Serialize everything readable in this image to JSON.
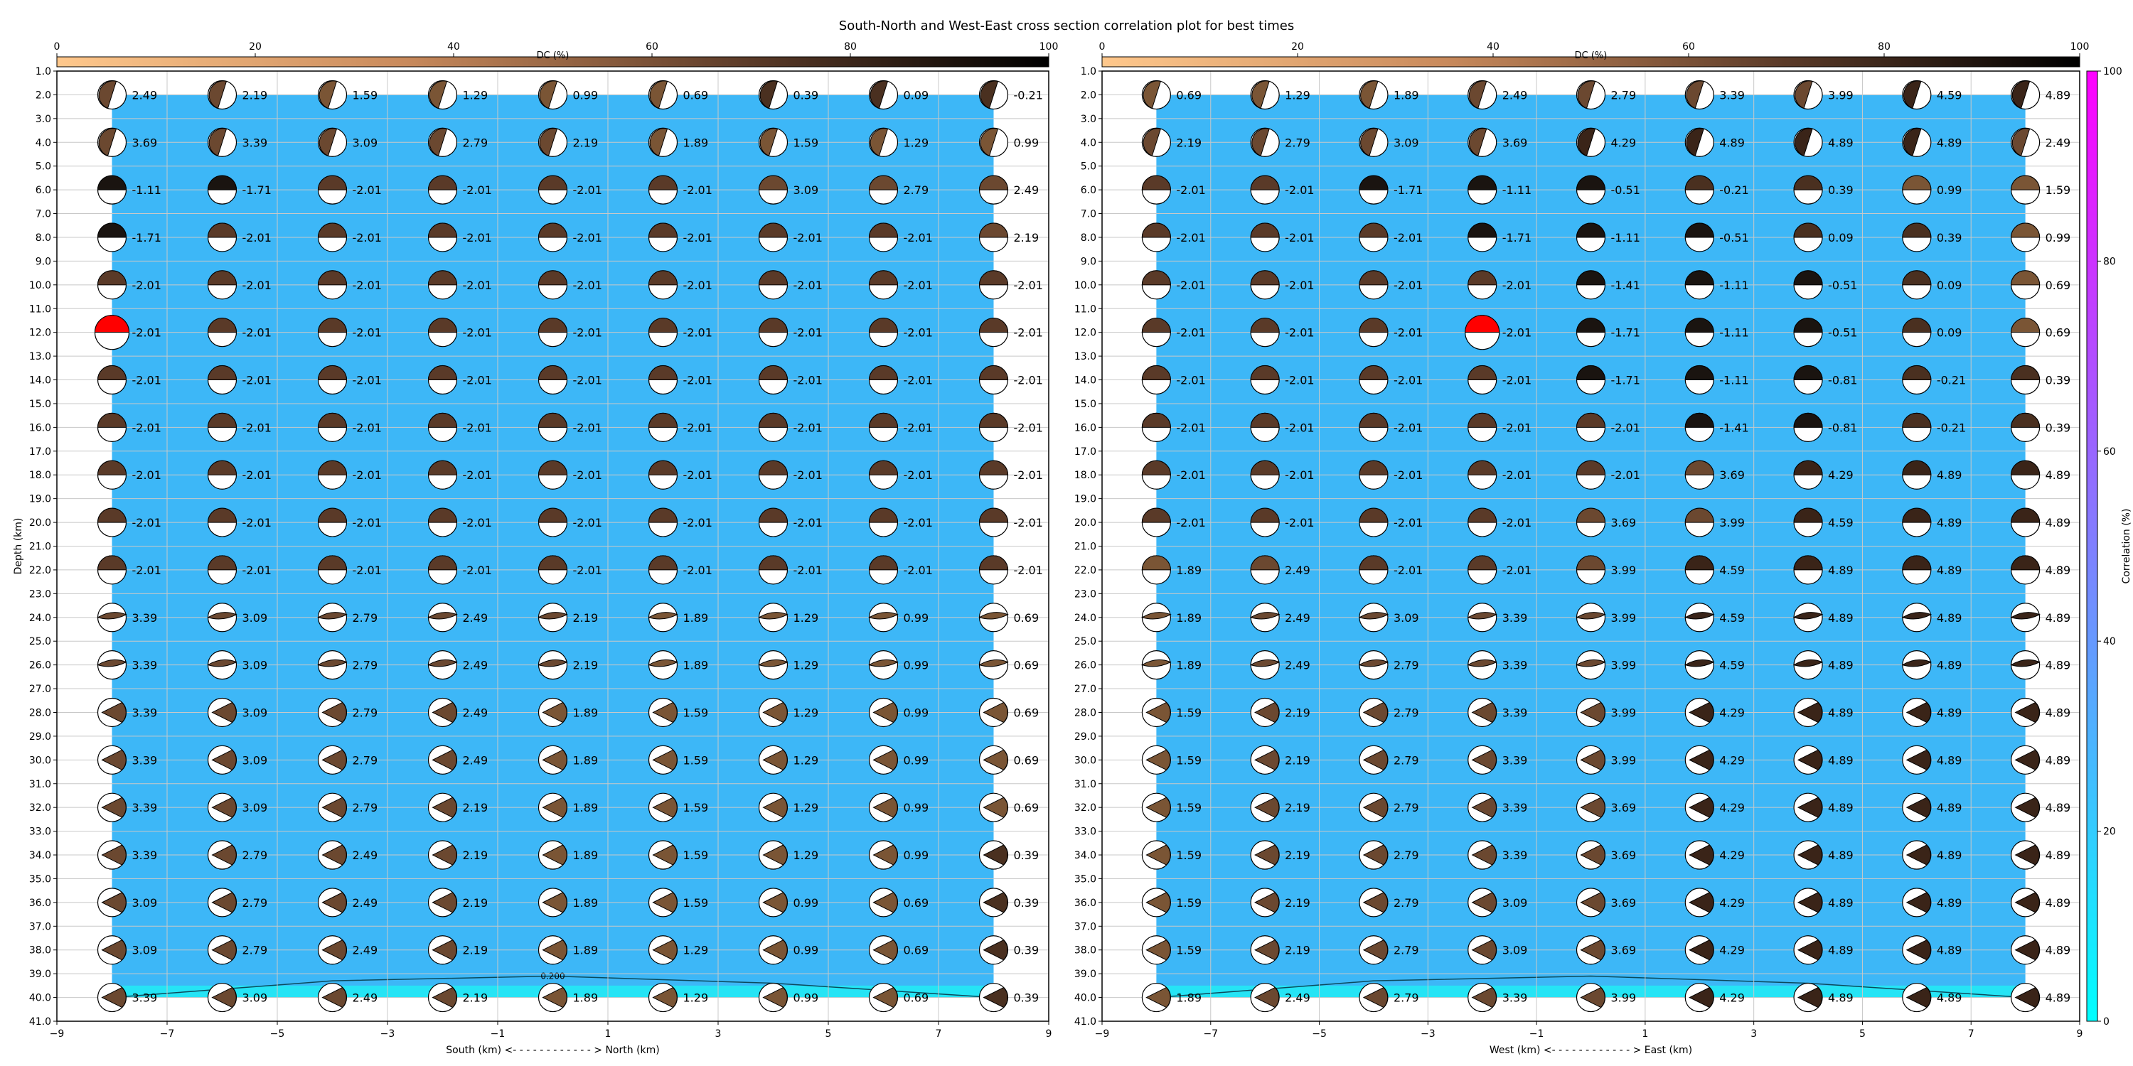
{
  "figure_title": "South-North and West-East cross section correlation plot for best times",
  "colors": {
    "background_fill": "#3db7f7",
    "contour_fill": "#25e4f5",
    "best_beach": "#ff0000"
  },
  "dc_colorbar": {
    "label": "DC (%)",
    "ticks": [
      "0",
      "20",
      "40",
      "60",
      "80",
      "100"
    ]
  },
  "corr_colorbar": {
    "label": "Correlation (%)",
    "ticks": [
      "0",
      "20",
      "40",
      "60",
      "80",
      "100"
    ]
  },
  "depth_label": "Depth (km)",
  "y_ticks": [
    "1.0",
    "2.0",
    "3.0",
    "4.0",
    "5.0",
    "6.0",
    "7.0",
    "8.0",
    "9.0",
    "10.0",
    "11.0",
    "12.0",
    "13.0",
    "14.0",
    "15.0",
    "16.0",
    "17.0",
    "18.0",
    "19.0",
    "20.0",
    "21.0",
    "22.0",
    "23.0",
    "24.0",
    "25.0",
    "26.0",
    "27.0",
    "28.0",
    "29.0",
    "30.0",
    "31.0",
    "32.0",
    "33.0",
    "34.0",
    "35.0",
    "36.0",
    "37.0",
    "38.0",
    "39.0",
    "40.0",
    "41.0"
  ],
  "chart_data": [
    {
      "type": "scatter",
      "title": "",
      "xlabel": "South (km) <- - - - - - - - - - - - > North (km)",
      "ylabel": "Depth (km)",
      "xlim": [
        -9,
        9
      ],
      "ylim": [
        41,
        1
      ],
      "x_ticks": [
        "−9",
        "−7",
        "−5",
        "−3",
        "−1",
        "1",
        "3",
        "5",
        "7",
        "9"
      ],
      "x": [
        -8,
        -6,
        -4,
        -2,
        0,
        2,
        4,
        6,
        8
      ],
      "depths": [
        2,
        4,
        6,
        8,
        10,
        12,
        14,
        16,
        18,
        20,
        22,
        24,
        26,
        28,
        30,
        32,
        34,
        36,
        38,
        40
      ],
      "best": {
        "x": -8,
        "depth": 12
      },
      "contour_label": "0.200",
      "labels": [
        [
          "2.49",
          "2.19",
          "1.59",
          "1.29",
          "0.99",
          "0.69",
          "0.39",
          "0.09",
          "-0.21"
        ],
        [
          "3.69",
          "3.39",
          "3.09",
          "2.79",
          "2.19",
          "1.89",
          "1.59",
          "1.29",
          "0.99"
        ],
        [
          "-1.11",
          "-1.71",
          "-2.01",
          "-2.01",
          "-2.01",
          "-2.01",
          "3.09",
          "2.79",
          "2.49"
        ],
        [
          "-1.71",
          "-2.01",
          "-2.01",
          "-2.01",
          "-2.01",
          "-2.01",
          "-2.01",
          "-2.01",
          "2.19"
        ],
        [
          "-2.01",
          "-2.01",
          "-2.01",
          "-2.01",
          "-2.01",
          "-2.01",
          "-2.01",
          "-2.01",
          "-2.01"
        ],
        [
          "-2.01",
          "-2.01",
          "-2.01",
          "-2.01",
          "-2.01",
          "-2.01",
          "-2.01",
          "-2.01",
          "-2.01"
        ],
        [
          "-2.01",
          "-2.01",
          "-2.01",
          "-2.01",
          "-2.01",
          "-2.01",
          "-2.01",
          "-2.01",
          "-2.01"
        ],
        [
          "-2.01",
          "-2.01",
          "-2.01",
          "-2.01",
          "-2.01",
          "-2.01",
          "-2.01",
          "-2.01",
          "-2.01"
        ],
        [
          "-2.01",
          "-2.01",
          "-2.01",
          "-2.01",
          "-2.01",
          "-2.01",
          "-2.01",
          "-2.01",
          "-2.01"
        ],
        [
          "-2.01",
          "-2.01",
          "-2.01",
          "-2.01",
          "-2.01",
          "-2.01",
          "-2.01",
          "-2.01",
          "-2.01"
        ],
        [
          "-2.01",
          "-2.01",
          "-2.01",
          "-2.01",
          "-2.01",
          "-2.01",
          "-2.01",
          "-2.01",
          "-2.01"
        ],
        [
          "3.39",
          "3.09",
          "2.79",
          "2.49",
          "2.19",
          "1.89",
          "1.29",
          "0.99",
          "0.69"
        ],
        [
          "3.39",
          "3.09",
          "2.79",
          "2.49",
          "2.19",
          "1.89",
          "1.29",
          "0.99",
          "0.69"
        ],
        [
          "3.39",
          "3.09",
          "2.79",
          "2.49",
          "1.89",
          "1.59",
          "1.29",
          "0.99",
          "0.69"
        ],
        [
          "3.39",
          "3.09",
          "2.79",
          "2.49",
          "1.89",
          "1.59",
          "1.29",
          "0.99",
          "0.69"
        ],
        [
          "3.39",
          "3.09",
          "2.79",
          "2.19",
          "1.89",
          "1.59",
          "1.29",
          "0.99",
          "0.69"
        ],
        [
          "3.39",
          "2.79",
          "2.49",
          "2.19",
          "1.89",
          "1.59",
          "1.29",
          "0.99",
          "0.39"
        ],
        [
          "3.09",
          "2.79",
          "2.49",
          "2.19",
          "1.89",
          "1.59",
          "0.99",
          "0.69",
          "0.39"
        ],
        [
          "3.09",
          "2.79",
          "2.49",
          "2.19",
          "1.89",
          "1.29",
          "0.99",
          "0.69",
          "0.39"
        ],
        [
          "3.39",
          "3.09",
          "2.49",
          "2.19",
          "1.89",
          "1.29",
          "0.99",
          "0.69",
          "0.39"
        ]
      ]
    },
    {
      "type": "scatter",
      "title": "",
      "xlabel": "West (km) <- - - - - - - - - - - - > East (km)",
      "ylabel": "",
      "xlim": [
        -9,
        9
      ],
      "ylim": [
        41,
        1
      ],
      "x_ticks": [
        "−9",
        "−7",
        "−5",
        "−3",
        "−1",
        "1",
        "3",
        "5",
        "7",
        "9"
      ],
      "x": [
        -8,
        -6,
        -4,
        -2,
        0,
        2,
        4,
        6,
        8
      ],
      "depths": [
        2,
        4,
        6,
        8,
        10,
        12,
        14,
        16,
        18,
        20,
        22,
        24,
        26,
        28,
        30,
        32,
        34,
        36,
        38,
        40
      ],
      "best": {
        "x": -2,
        "depth": 12
      },
      "contour_label": "",
      "labels": [
        [
          "0.69",
          "1.29",
          "1.89",
          "2.49",
          "2.79",
          "3.39",
          "3.99",
          "4.59",
          "4.89"
        ],
        [
          "2.19",
          "2.79",
          "3.09",
          "3.69",
          "4.29",
          "4.89",
          "4.89",
          "4.89",
          "2.49"
        ],
        [
          "-2.01",
          "-2.01",
          "-1.71",
          "-1.11",
          "-0.51",
          "-0.21",
          "0.39",
          "0.99",
          "1.59"
        ],
        [
          "-2.01",
          "-2.01",
          "-2.01",
          "-1.71",
          "-1.11",
          "-0.51",
          "0.09",
          "0.39",
          "0.99"
        ],
        [
          "-2.01",
          "-2.01",
          "-2.01",
          "-2.01",
          "-1.41",
          "-1.11",
          "-0.51",
          "0.09",
          "0.69"
        ],
        [
          "-2.01",
          "-2.01",
          "-2.01",
          "-2.01",
          "-1.71",
          "-1.11",
          "-0.51",
          "0.09",
          "0.69"
        ],
        [
          "-2.01",
          "-2.01",
          "-2.01",
          "-2.01",
          "-1.71",
          "-1.11",
          "-0.81",
          "-0.21",
          "0.39"
        ],
        [
          "-2.01",
          "-2.01",
          "-2.01",
          "-2.01",
          "-2.01",
          "-1.41",
          "-0.81",
          "-0.21",
          "0.39"
        ],
        [
          "-2.01",
          "-2.01",
          "-2.01",
          "-2.01",
          "-2.01",
          "3.69",
          "4.29",
          "4.89",
          "4.89"
        ],
        [
          "-2.01",
          "-2.01",
          "-2.01",
          "-2.01",
          "3.69",
          "3.99",
          "4.59",
          "4.89",
          "4.89"
        ],
        [
          "1.89",
          "2.49",
          "-2.01",
          "-2.01",
          "3.99",
          "4.59",
          "4.89",
          "4.89",
          "4.89"
        ],
        [
          "1.89",
          "2.49",
          "3.09",
          "3.39",
          "3.99",
          "4.59",
          "4.89",
          "4.89",
          "4.89"
        ],
        [
          "1.89",
          "2.49",
          "2.79",
          "3.39",
          "3.99",
          "4.59",
          "4.89",
          "4.89",
          "4.89"
        ],
        [
          "1.59",
          "2.19",
          "2.79",
          "3.39",
          "3.99",
          "4.29",
          "4.89",
          "4.89",
          "4.89"
        ],
        [
          "1.59",
          "2.19",
          "2.79",
          "3.39",
          "3.99",
          "4.29",
          "4.89",
          "4.89",
          "4.89"
        ],
        [
          "1.59",
          "2.19",
          "2.79",
          "3.39",
          "3.69",
          "4.29",
          "4.89",
          "4.89",
          "4.89"
        ],
        [
          "1.59",
          "2.19",
          "2.79",
          "3.39",
          "3.69",
          "4.29",
          "4.89",
          "4.89",
          "4.89"
        ],
        [
          "1.59",
          "2.19",
          "2.79",
          "3.09",
          "3.69",
          "4.29",
          "4.89",
          "4.89",
          "4.89"
        ],
        [
          "1.59",
          "2.19",
          "2.79",
          "3.09",
          "3.69",
          "4.29",
          "4.89",
          "4.89",
          "4.89"
        ],
        [
          "1.89",
          "2.49",
          "2.79",
          "3.39",
          "3.99",
          "4.29",
          "4.89",
          "4.89",
          "4.89"
        ]
      ]
    }
  ]
}
